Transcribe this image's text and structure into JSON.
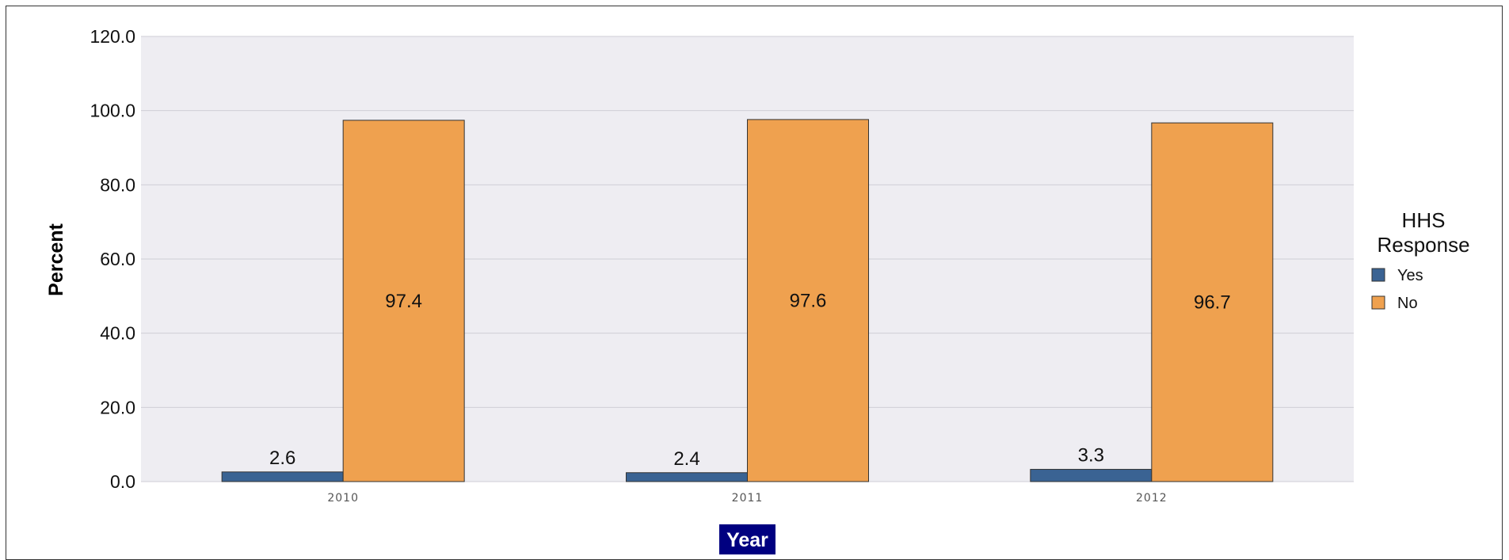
{
  "chart_data": {
    "type": "bar",
    "categories": [
      "2010",
      "2011",
      "2012"
    ],
    "series": [
      {
        "name": "Yes",
        "values": [
          2.6,
          2.4,
          3.3
        ],
        "color": "#3a6393"
      },
      {
        "name": "No",
        "values": [
          97.4,
          97.6,
          96.7
        ],
        "color": "#efa14f"
      }
    ],
    "data_labels": {
      "Yes": [
        "2.6",
        "2.4",
        "3.3"
      ],
      "No": [
        "97.4",
        "97.6",
        "96.7"
      ]
    },
    "xlabel": "Year",
    "ylabel": "Percent",
    "ylim": [
      0,
      120
    ],
    "yticks": [
      "0.0",
      "20.0",
      "40.0",
      "60.0",
      "80.0",
      "100.0",
      "120.0"
    ],
    "grid": true,
    "legend": {
      "title_line1": "HHS",
      "title_line2": "Response",
      "placement": "right"
    },
    "colors": {
      "plot_background": "#eeedf2",
      "gridline": "#cfced6",
      "xlabel_background": "#000080"
    }
  }
}
